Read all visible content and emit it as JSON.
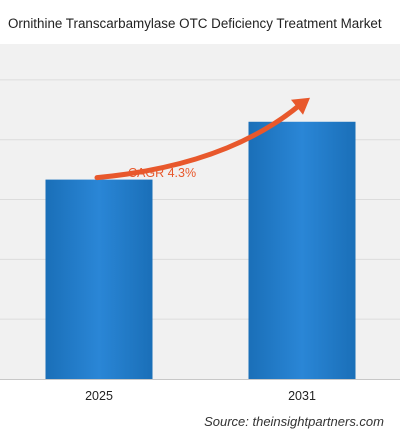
{
  "chart_data": {
    "type": "bar",
    "title": "Ornithine Transcarbamylase OTC Deficiency Treatment Market",
    "categories": [
      "2025",
      "2031"
    ],
    "values": [
      1.0,
      1.29
    ],
    "xlabel": "",
    "ylabel": "",
    "ylim": [
      0,
      1.68
    ],
    "grid": true,
    "legend": "none",
    "bar_color": "#1f7ac7",
    "annotation": {
      "text": "CAGR 4.3%",
      "color": "#e8582c"
    }
  },
  "source": "Source: theinsightpartners.com"
}
